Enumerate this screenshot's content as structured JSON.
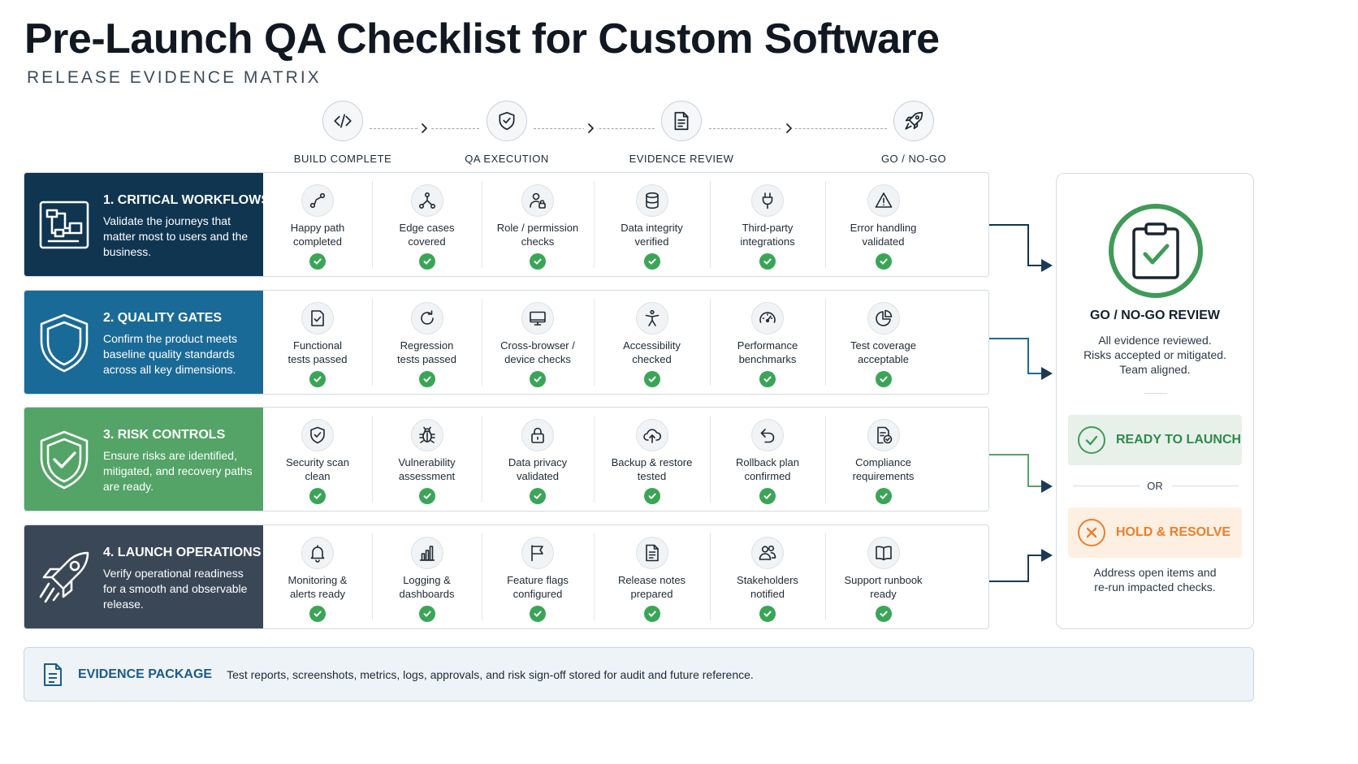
{
  "header": {
    "title": "Pre-Launch QA Checklist for Custom Software",
    "subtitle": "RELEASE EVIDENCE MATRIX"
  },
  "stages": [
    {
      "label": "BUILD COMPLETE",
      "icon": "code-icon"
    },
    {
      "label": "QA EXECUTION",
      "icon": "shield-check-icon"
    },
    {
      "label": "EVIDENCE REVIEW",
      "icon": "document-icon"
    },
    {
      "label": "GO / NO-GO",
      "icon": "rocket-icon"
    }
  ],
  "colors": {
    "row1": "#0f3550",
    "row2": "#1a6a98",
    "row3": "#53a466",
    "row4": "#3a4757",
    "check": "#3aa557",
    "ready": "#3f9b57",
    "hold": "#e9802b",
    "evidence_title": "#1e5a87"
  },
  "rows": [
    {
      "title": "1. CRITICAL WORKFLOWS",
      "description": "Validate the journeys that matter most to users and the business.",
      "icon": "workflow-icon",
      "items": [
        {
          "label": "Happy path\ncompleted",
          "icon": "path-icon",
          "status": "passed"
        },
        {
          "label": "Edge cases\ncovered",
          "icon": "branch-icon",
          "status": "passed"
        },
        {
          "label": "Role / permission\nchecks",
          "icon": "user-lock-icon",
          "status": "passed"
        },
        {
          "label": "Data integrity\nverified",
          "icon": "database-icon",
          "status": "passed"
        },
        {
          "label": "Third-party\nintegrations",
          "icon": "plug-icon",
          "status": "passed"
        },
        {
          "label": "Error handling\nvalidated",
          "icon": "warning-icon",
          "status": "passed"
        }
      ]
    },
    {
      "title": "2. QUALITY GATES",
      "description": "Confirm the product meets baseline quality standards across all key dimensions.",
      "icon": "shield-icon",
      "items": [
        {
          "label": "Functional\ntests passed",
          "icon": "checklist-icon",
          "status": "passed"
        },
        {
          "label": "Regression\ntests passed",
          "icon": "refresh-icon",
          "status": "passed"
        },
        {
          "label": "Cross-browser /\ndevice checks",
          "icon": "monitor-icon",
          "status": "passed"
        },
        {
          "label": "Accessibility\nchecked",
          "icon": "accessibility-icon",
          "status": "passed"
        },
        {
          "label": "Performance\nbenchmarks",
          "icon": "gauge-icon",
          "status": "passed"
        },
        {
          "label": "Test coverage\nacceptable",
          "icon": "pie-chart-icon",
          "status": "passed"
        }
      ]
    },
    {
      "title": "3. RISK CONTROLS",
      "description": "Ensure risks are identified, mitigated, and recovery paths are ready.",
      "icon": "shield-check-icon",
      "items": [
        {
          "label": "Security scan\nclean",
          "icon": "shield-check-icon",
          "status": "passed"
        },
        {
          "label": "Vulnerability\nassessment",
          "icon": "bug-icon",
          "status": "passed"
        },
        {
          "label": "Data privacy\nvalidated",
          "icon": "lock-icon",
          "status": "passed"
        },
        {
          "label": "Backup & restore\ntested",
          "icon": "cloud-upload-icon",
          "status": "passed"
        },
        {
          "label": "Rollback plan\nconfirmed",
          "icon": "undo-icon",
          "status": "passed"
        },
        {
          "label": "Compliance\nrequirements",
          "icon": "document-check-icon",
          "status": "passed"
        }
      ]
    },
    {
      "title": "4. LAUNCH OPERATIONS",
      "description": "Verify operational readiness for a smooth and observable release.",
      "icon": "rocket-icon",
      "items": [
        {
          "label": "Monitoring &\nalerts ready",
          "icon": "bell-icon",
          "status": "passed"
        },
        {
          "label": "Logging &\ndashboards",
          "icon": "bar-chart-icon",
          "status": "passed"
        },
        {
          "label": "Feature flags\nconfigured",
          "icon": "flag-icon",
          "status": "passed"
        },
        {
          "label": "Release notes\nprepared",
          "icon": "notes-icon",
          "status": "passed"
        },
        {
          "label": "Stakeholders\nnotified",
          "icon": "users-icon",
          "status": "passed"
        },
        {
          "label": "Support runbook\nready",
          "icon": "book-icon",
          "status": "passed"
        }
      ]
    }
  ],
  "review": {
    "title": "GO / NO-GO REVIEW",
    "lines": [
      "All evidence reviewed.",
      "Risks accepted or mitigated.",
      "Team aligned."
    ],
    "ready_label": "READY TO LAUNCH",
    "or_label": "OR",
    "hold_label": "HOLD & RESOLVE",
    "hold_note": [
      "Address open items and",
      "re-run impacted checks."
    ]
  },
  "evidence": {
    "title": "EVIDENCE PACKAGE",
    "text": "Test reports, screenshots, metrics, logs, approvals, and risk sign-off stored for audit and future reference."
  }
}
